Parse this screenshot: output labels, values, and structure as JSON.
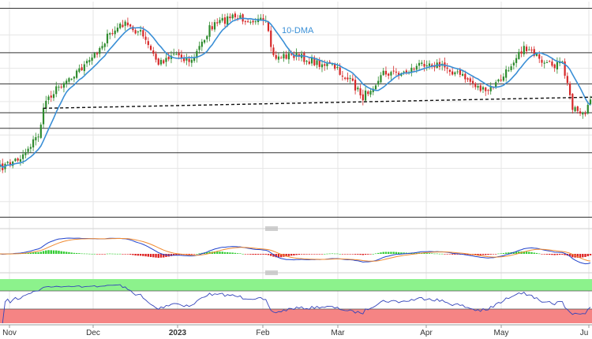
{
  "chart_data": {
    "type": "candlestick",
    "x_ticks": [
      "Nov",
      "Dec",
      "2023",
      "Feb",
      "Mar",
      "Apr",
      "May",
      "Ju"
    ],
    "bold_ticks": [
      "2023"
    ],
    "annotations": [
      {
        "text": "10-DMA",
        "color": "#3a8fd6"
      }
    ],
    "horizontal_levels_share_of_panel": [
      0.03,
      0.23,
      0.37,
      0.5,
      0.57,
      0.68,
      0.97
    ],
    "trendline": {
      "style": "dashed",
      "from_day": 17,
      "to_day": 231,
      "from_level": 0.48,
      "to_level": 0.43
    },
    "sma_period": 10,
    "candles": {
      "count": 232,
      "anchors_day_level": [
        [
          0,
          0.75
        ],
        [
          8,
          0.7
        ],
        [
          15,
          0.6
        ],
        [
          18,
          0.44
        ],
        [
          25,
          0.36
        ],
        [
          35,
          0.27
        ],
        [
          42,
          0.16
        ],
        [
          48,
          0.1
        ],
        [
          55,
          0.14
        ],
        [
          62,
          0.28
        ],
        [
          68,
          0.23
        ],
        [
          75,
          0.27
        ],
        [
          82,
          0.12
        ],
        [
          90,
          0.07
        ],
        [
          100,
          0.08
        ],
        [
          104,
          0.1
        ],
        [
          107,
          0.25
        ],
        [
          115,
          0.24
        ],
        [
          122,
          0.27
        ],
        [
          130,
          0.29
        ],
        [
          138,
          0.37
        ],
        [
          142,
          0.43
        ],
        [
          150,
          0.32
        ],
        [
          158,
          0.32
        ],
        [
          167,
          0.27
        ],
        [
          175,
          0.3
        ],
        [
          183,
          0.35
        ],
        [
          190,
          0.41
        ],
        [
          197,
          0.34
        ],
        [
          203,
          0.22
        ],
        [
          208,
          0.21
        ],
        [
          212,
          0.29
        ],
        [
          220,
          0.28
        ],
        [
          224,
          0.47
        ],
        [
          229,
          0.51
        ],
        [
          231,
          0.45
        ]
      ]
    },
    "macd": {
      "fast_ema": 12,
      "slow_ema": 26,
      "signal": 9
    },
    "rsi": {
      "period": 14,
      "overbought_band_color": "#8cf28c",
      "oversold_band_color": "#f58484"
    },
    "colors": {
      "up": "#2e8b2e",
      "down": "#d62828",
      "sma": "#3a8fd6",
      "macd_line": "#2244cc",
      "signal_line": "#f08a30",
      "hist_positive": "#33cc33",
      "hist_negative": "#dd2222",
      "rsi_line": "#3344bb",
      "grid": "#e6e6e6",
      "level": "#333333"
    }
  }
}
